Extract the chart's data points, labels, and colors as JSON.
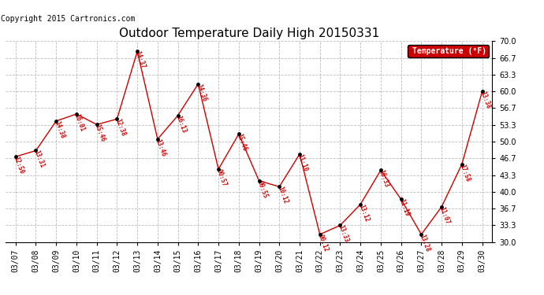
{
  "title": "Outdoor Temperature Daily High 20150331",
  "copyright": "Copyright 2015 Cartronics.com",
  "legend_label": "Temperature (°F)",
  "dates": [
    "03/07",
    "03/08",
    "03/09",
    "03/10",
    "03/11",
    "03/12",
    "03/13",
    "03/14",
    "03/15",
    "03/16",
    "03/17",
    "03/18",
    "03/19",
    "03/20",
    "03/21",
    "03/22",
    "03/23",
    "03/24",
    "03/25",
    "03/26",
    "03/27",
    "03/28",
    "03/29",
    "03/30"
  ],
  "values": [
    47.0,
    48.2,
    54.1,
    55.5,
    53.4,
    54.5,
    68.0,
    50.5,
    55.2,
    61.5,
    44.5,
    51.5,
    42.2,
    41.0,
    47.5,
    31.5,
    33.3,
    37.5,
    44.3,
    38.5,
    31.5,
    37.0,
    45.5,
    60.0
  ],
  "time_labels": [
    "12:50",
    "13:31",
    "14:38",
    "16:01",
    "15:46",
    "12:38",
    "14:37",
    "13:46",
    "16:13",
    "14:36",
    "00:57",
    "15:46",
    "09:55",
    "10:12",
    "11:10",
    "00:12",
    "13:33",
    "13:12",
    "16:33",
    "11:19",
    "13:28",
    "11:07",
    "17:58",
    "13:38"
  ],
  "ylim": [
    30.0,
    70.0
  ],
  "yticks": [
    30.0,
    33.3,
    36.7,
    40.0,
    43.3,
    46.7,
    50.0,
    53.3,
    56.7,
    60.0,
    63.3,
    66.7,
    70.0
  ],
  "line_color": "#cc0000",
  "marker_color": "#000000",
  "label_color": "#cc0000",
  "bg_color": "#ffffff",
  "grid_color": "#bbbbbb",
  "title_fontsize": 11,
  "copyright_fontsize": 7,
  "legend_bg": "#cc0000",
  "legend_text_color": "#ffffff"
}
